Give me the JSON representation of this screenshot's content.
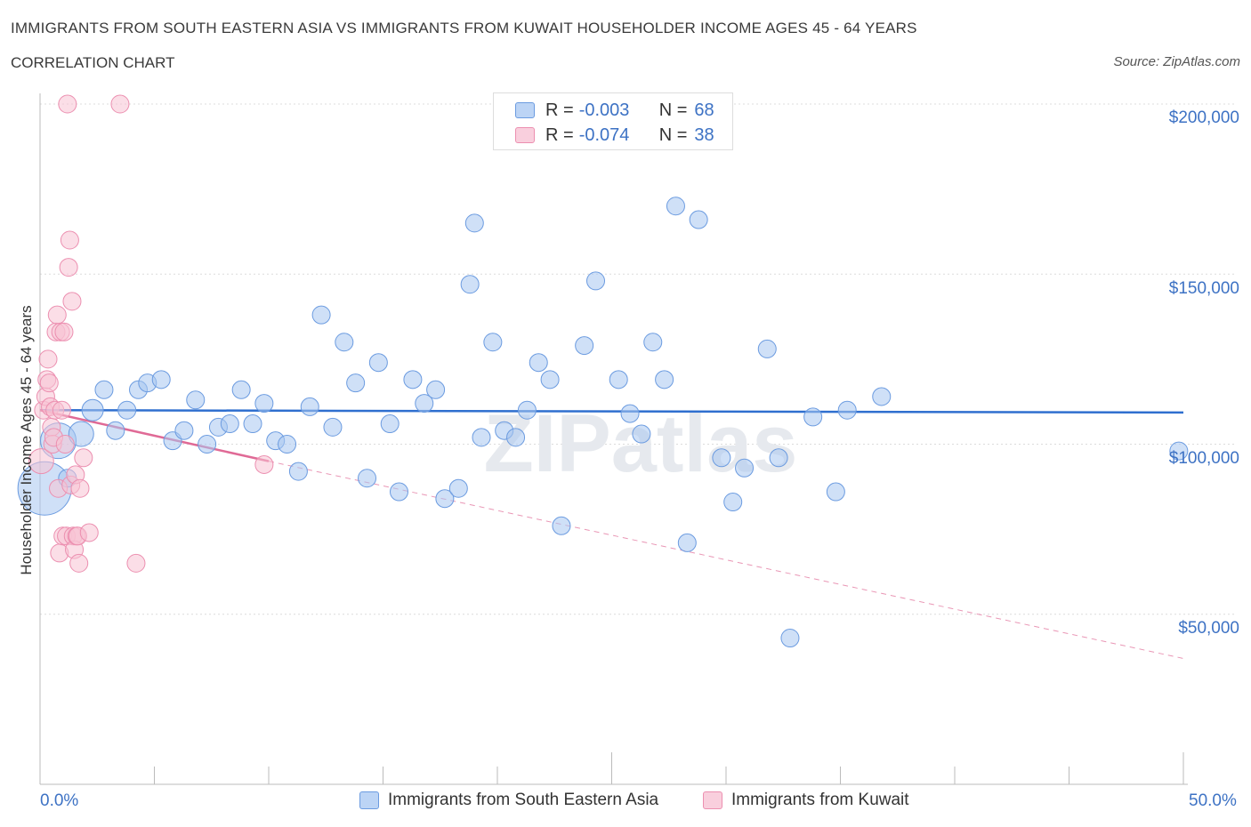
{
  "title": "IMMIGRANTS FROM SOUTH EASTERN ASIA VS IMMIGRANTS FROM KUWAIT HOUSEHOLDER INCOME AGES 45 - 64 YEARS",
  "subtitle": "CORRELATION CHART",
  "source": "Source: ZipAtlas.com",
  "watermark": "ZIPatlas",
  "legend_stats": [
    {
      "r_label": "R =",
      "r_value": "-0.003",
      "n_label": "N =",
      "n_value": "68"
    },
    {
      "r_label": "R =",
      "r_value": "-0.074",
      "n_label": "N =",
      "n_value": "38"
    }
  ],
  "chart_data": {
    "type": "scatter",
    "title": "IMMIGRANTS FROM SOUTH EASTERN ASIA VS IMMIGRANTS FROM KUWAIT HOUSEHOLDER INCOME AGES 45 - 64 YEARS",
    "xlabel": "",
    "ylabel": "Householder Income Ages 45 - 64 years",
    "xlim": [
      0,
      50
    ],
    "ylim": [
      0,
      200000
    ],
    "x_tick_labels": [
      "0.0%",
      "50.0%"
    ],
    "y_ticks": [
      50000,
      100000,
      150000,
      200000
    ],
    "y_tick_labels": [
      "$50,000",
      "$100,000",
      "$150,000",
      "$200,000"
    ],
    "grid": true,
    "legend_position": "top-center",
    "series": [
      {
        "name": "Immigrants from South Eastern Asia",
        "color": "#a8c6f0",
        "stroke": "#6b9be0",
        "line_color": "#2f6fcf",
        "trend": [
          [
            0,
            110000
          ],
          [
            50,
            109300
          ]
        ],
        "points": [
          [
            0.2,
            87000,
            30
          ],
          [
            0.8,
            101000,
            20
          ],
          [
            1.8,
            103000,
            14
          ],
          [
            1.2,
            90000,
            10
          ],
          [
            2.3,
            110000,
            12
          ],
          [
            2.8,
            116000,
            10
          ],
          [
            3.3,
            104000,
            10
          ],
          [
            3.8,
            110000,
            10
          ],
          [
            4.3,
            116000,
            10
          ],
          [
            4.7,
            118000,
            10
          ],
          [
            5.3,
            119000,
            10
          ],
          [
            5.8,
            101000,
            10
          ],
          [
            6.3,
            104000,
            10
          ],
          [
            6.8,
            113000,
            10
          ],
          [
            7.3,
            100000,
            10
          ],
          [
            7.8,
            105000,
            10
          ],
          [
            8.3,
            106000,
            10
          ],
          [
            8.8,
            116000,
            10
          ],
          [
            9.3,
            106000,
            10
          ],
          [
            9.8,
            112000,
            10
          ],
          [
            10.3,
            101000,
            10
          ],
          [
            10.8,
            100000,
            10
          ],
          [
            11.3,
            92000,
            10
          ],
          [
            11.8,
            111000,
            10
          ],
          [
            12.3,
            138000,
            10
          ],
          [
            12.8,
            105000,
            10
          ],
          [
            13.3,
            130000,
            10
          ],
          [
            13.8,
            118000,
            10
          ],
          [
            14.3,
            90000,
            10
          ],
          [
            14.8,
            124000,
            10
          ],
          [
            15.3,
            106000,
            10
          ],
          [
            15.7,
            86000,
            10
          ],
          [
            16.3,
            119000,
            10
          ],
          [
            16.8,
            112000,
            10
          ],
          [
            17.3,
            116000,
            10
          ],
          [
            17.7,
            84000,
            10
          ],
          [
            18.3,
            87000,
            10
          ],
          [
            18.8,
            147000,
            10
          ],
          [
            19.0,
            165000,
            10
          ],
          [
            19.3,
            102000,
            10
          ],
          [
            19.8,
            130000,
            10
          ],
          [
            20.3,
            104000,
            10
          ],
          [
            20.8,
            102000,
            10
          ],
          [
            21.3,
            110000,
            10
          ],
          [
            21.8,
            124000,
            10
          ],
          [
            22.3,
            119000,
            10
          ],
          [
            22.8,
            76000,
            10
          ],
          [
            23.8,
            129000,
            10
          ],
          [
            24.3,
            148000,
            10
          ],
          [
            25.3,
            119000,
            10
          ],
          [
            25.8,
            109000,
            10
          ],
          [
            26.3,
            103000,
            10
          ],
          [
            26.8,
            130000,
            10
          ],
          [
            27.3,
            119000,
            10
          ],
          [
            27.8,
            170000,
            10
          ],
          [
            28.3,
            71000,
            10
          ],
          [
            28.8,
            166000,
            10
          ],
          [
            29.8,
            96000,
            10
          ],
          [
            30.3,
            83000,
            10
          ],
          [
            30.8,
            93000,
            10
          ],
          [
            31.8,
            128000,
            10
          ],
          [
            32.3,
            96000,
            10
          ],
          [
            32.8,
            43000,
            10
          ],
          [
            33.8,
            108000,
            10
          ],
          [
            34.8,
            86000,
            10
          ],
          [
            35.3,
            110000,
            10
          ],
          [
            36.8,
            114000,
            10
          ],
          [
            49.8,
            98000,
            10
          ]
        ]
      },
      {
        "name": "Immigrants from Kuwait",
        "color": "#f7c3d4",
        "stroke": "#ec8fb0",
        "line_color": "#e06a96",
        "trend": [
          [
            0,
            110000
          ],
          [
            10,
            95000
          ]
        ],
        "trend_extension": [
          [
            10,
            95000
          ],
          [
            50,
            37000
          ]
        ],
        "points": [
          [
            0.05,
            95000,
            14
          ],
          [
            0.15,
            110000,
            10
          ],
          [
            0.25,
            114000,
            10
          ],
          [
            0.3,
            119000,
            10
          ],
          [
            0.35,
            125000,
            10
          ],
          [
            0.4,
            118000,
            10
          ],
          [
            0.45,
            111000,
            10
          ],
          [
            0.5,
            105000,
            10
          ],
          [
            0.55,
            100000,
            10
          ],
          [
            0.6,
            102000,
            10
          ],
          [
            0.65,
            110000,
            10
          ],
          [
            0.7,
            133000,
            10
          ],
          [
            0.75,
            138000,
            10
          ],
          [
            0.8,
            87000,
            10
          ],
          [
            0.85,
            68000,
            10
          ],
          [
            0.9,
            133000,
            10
          ],
          [
            0.95,
            110000,
            10
          ],
          [
            1.0,
            73000,
            10
          ],
          [
            1.05,
            133000,
            10
          ],
          [
            1.1,
            100000,
            10
          ],
          [
            1.15,
            73000,
            10
          ],
          [
            1.2,
            200000,
            10
          ],
          [
            1.25,
            152000,
            10
          ],
          [
            1.3,
            160000,
            10
          ],
          [
            1.35,
            88000,
            10
          ],
          [
            1.4,
            142000,
            10
          ],
          [
            1.45,
            73000,
            10
          ],
          [
            1.5,
            69000,
            10
          ],
          [
            1.55,
            91000,
            10
          ],
          [
            1.6,
            73000,
            10
          ],
          [
            1.65,
            73000,
            10
          ],
          [
            1.7,
            65000,
            10
          ],
          [
            1.75,
            87000,
            10
          ],
          [
            2.15,
            74000,
            10
          ],
          [
            3.5,
            200000,
            10
          ],
          [
            4.2,
            65000,
            10
          ],
          [
            9.8,
            94000,
            10
          ],
          [
            1.9,
            96000,
            10
          ]
        ]
      }
    ]
  }
}
